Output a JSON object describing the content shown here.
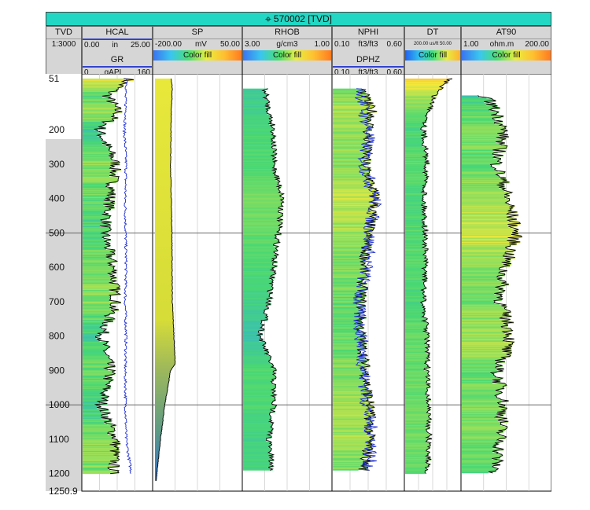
{
  "title": "570002 [TVD]",
  "header": {
    "tvd": {
      "name": "TVD",
      "scale": "1:3000"
    },
    "hcal": {
      "name": "HCAL",
      "min": "0.00",
      "unit": "in",
      "max": "25.00"
    },
    "gr": {
      "name": "GR",
      "min": "0",
      "unit": "gAPI",
      "max": "160"
    },
    "sp": {
      "name": "SP",
      "min": "-200.00",
      "unit": "mV",
      "max": "50.00",
      "fill": "Color fill"
    },
    "rhob": {
      "name": "RHOB",
      "min": "3.00",
      "unit": "g/cm3",
      "max": "1.00",
      "fill": "Color fill"
    },
    "nphi": {
      "name": "NPHI",
      "min": "0.10",
      "unit": "ft3/ft3",
      "max": "0.60"
    },
    "dphz": {
      "name": "DPHZ",
      "min": "0.10",
      "unit": "ft3/ft3",
      "max": "0.60"
    },
    "dt": {
      "name": "DT",
      "scale": "200.00 us/ft 50.00",
      "fill": "Color fill"
    },
    "at90": {
      "name": "AT90",
      "min": "1.00",
      "unit": "ohm.m",
      "max": "200.00",
      "fill": "Color fill"
    }
  },
  "colors": {
    "header_bg": "#d6d6d6",
    "title_bg": "#22d7c4",
    "curve": "#000000",
    "gr_curve": "#1f2fd0",
    "dphz_curve": "#1f2fd0",
    "fill_low": "#2aa6f0",
    "fill_mid": "#4ad873",
    "fill_high": "#f6e83a",
    "fill_max": "#f7a030"
  },
  "chart_data": {
    "type": "well-log",
    "index": "TVD",
    "depth_range": [
      51,
      1250.9
    ],
    "depth_ticks": [
      51,
      200,
      300,
      400,
      500,
      600,
      700,
      800,
      900,
      1000,
      1100,
      1200,
      1250.9
    ],
    "tracks": [
      {
        "curve": "HCAL",
        "unit": "in",
        "range": [
          0,
          25
        ],
        "color_fill": true,
        "depth": [
          51,
          100,
          150,
          200,
          300,
          400,
          500,
          600,
          700,
          800,
          900,
          1000,
          1100,
          1200
        ],
        "values": [
          17,
          9,
          13,
          6,
          12,
          10,
          8,
          11,
          12,
          7,
          10,
          7,
          12,
          11
        ]
      },
      {
        "curve": "GR",
        "unit": "gAPI",
        "range": [
          0,
          160
        ],
        "depth": [
          51,
          100,
          150,
          200,
          300,
          400,
          500,
          600,
          700,
          800,
          900,
          1000,
          1100,
          1200
        ],
        "values": [
          104,
          98,
          100,
          96,
          100,
          98,
          99,
          100,
          98,
          100,
          98,
          99,
          100,
          112
        ]
      },
      {
        "curve": "SP",
        "unit": "mV",
        "range": [
          -200,
          50
        ],
        "color_fill": true,
        "depth": [
          51,
          80,
          150,
          300,
          500,
          700,
          880,
          900,
          1000,
          1100,
          1200,
          1222
        ],
        "values": [
          -148,
          -145,
          -148,
          -150,
          -146,
          -145,
          -137,
          -150,
          -166,
          -178,
          -188,
          -190
        ]
      },
      {
        "curve": "RHOB",
        "unit": "g/cm3",
        "range": [
          3,
          1
        ],
        "color_fill": true,
        "depth": [
          80,
          150,
          200,
          300,
          400,
          500,
          600,
          700,
          800,
          900,
          1000,
          1100,
          1190
        ],
        "values": [
          2.5,
          2.4,
          2.3,
          2.3,
          2.1,
          2.2,
          2.3,
          2.4,
          2.6,
          2.3,
          2.3,
          2.4,
          2.35
        ]
      },
      {
        "curve": "NPHI",
        "unit": "ft3/ft3",
        "range": [
          0.1,
          0.6
        ],
        "color_fill": true,
        "depth": [
          80,
          150,
          200,
          300,
          400,
          500,
          600,
          700,
          800,
          900,
          1000,
          1100,
          1190
        ],
        "values": [
          0.3,
          0.38,
          0.35,
          0.33,
          0.4,
          0.35,
          0.32,
          0.3,
          0.3,
          0.33,
          0.36,
          0.36,
          0.32
        ]
      },
      {
        "curve": "DPHZ",
        "unit": "ft3/ft3",
        "range": [
          0.1,
          0.6
        ],
        "depth": [
          80,
          150,
          200,
          300,
          400,
          500,
          600,
          700,
          800,
          900,
          1000,
          1100,
          1190
        ],
        "values": [
          0.3,
          0.32,
          0.36,
          0.32,
          0.4,
          0.36,
          0.34,
          0.28,
          0.3,
          0.32,
          0.34,
          0.38,
          0.35
        ]
      },
      {
        "curve": "DT",
        "unit": "us/ft",
        "range": [
          200,
          50
        ],
        "color_fill": true,
        "depth": [
          51,
          100,
          200,
          300,
          400,
          500,
          600,
          700,
          800,
          900,
          1000,
          1100,
          1200
        ],
        "values": [
          80,
          120,
          150,
          140,
          148,
          145,
          145,
          150,
          140,
          140,
          136,
          135,
          138
        ]
      },
      {
        "curve": "AT90",
        "unit": "ohm.m",
        "range": [
          1,
          200
        ],
        "color_fill": true,
        "depth": [
          100,
          150,
          200,
          300,
          400,
          500,
          600,
          700,
          800,
          900,
          1000,
          1100,
          1200
        ],
        "values": [
          4,
          8,
          12,
          8,
          15,
          25,
          12,
          10,
          18,
          8,
          12,
          10,
          7
        ]
      }
    ]
  }
}
